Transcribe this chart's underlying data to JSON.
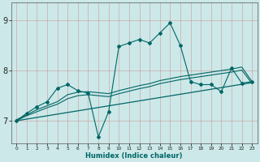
{
  "bg_color": "#cce8e8",
  "line_color": "#006666",
  "x_label": "Humidex (Indice chaleur)",
  "yticks": [
    7,
    8,
    9
  ],
  "xticks": [
    0,
    1,
    2,
    3,
    4,
    5,
    6,
    7,
    8,
    9,
    10,
    11,
    12,
    13,
    14,
    15,
    16,
    17,
    18,
    19,
    20,
    21,
    22,
    23
  ],
  "xlim": [
    -0.5,
    23.5
  ],
  "ylim": [
    6.55,
    9.35
  ],
  "volatile_x": [
    0,
    1,
    2,
    3,
    4,
    5,
    6,
    7,
    8,
    9,
    10,
    11,
    12,
    13,
    14,
    15,
    16,
    17,
    18,
    19,
    20,
    21,
    22,
    23
  ],
  "volatile_y": [
    7.0,
    7.15,
    7.28,
    7.38,
    7.65,
    7.72,
    7.6,
    7.55,
    6.68,
    7.18,
    8.48,
    8.55,
    8.62,
    8.55,
    8.75,
    8.95,
    8.5,
    7.78,
    7.72,
    7.72,
    7.58,
    8.05,
    7.75,
    7.78
  ],
  "smooth1_x": [
    0,
    1,
    2,
    3,
    4,
    5,
    6,
    7,
    8,
    9,
    10,
    11,
    12,
    13,
    14,
    15,
    16,
    17,
    18,
    19,
    20,
    21,
    22,
    23
  ],
  "smooth1_y": [
    7.02,
    7.12,
    7.22,
    7.3,
    7.38,
    7.52,
    7.57,
    7.58,
    7.56,
    7.54,
    7.6,
    7.65,
    7.7,
    7.74,
    7.8,
    7.84,
    7.88,
    7.91,
    7.94,
    7.97,
    8.0,
    8.03,
    8.07,
    7.78
  ],
  "smooth2_x": [
    0,
    1,
    2,
    3,
    4,
    5,
    6,
    7,
    8,
    9,
    10,
    11,
    12,
    13,
    14,
    15,
    16,
    17,
    18,
    19,
    20,
    21,
    22,
    23
  ],
  "smooth2_y": [
    7.0,
    7.1,
    7.18,
    7.26,
    7.33,
    7.44,
    7.5,
    7.52,
    7.5,
    7.48,
    7.54,
    7.59,
    7.64,
    7.68,
    7.74,
    7.78,
    7.82,
    7.85,
    7.88,
    7.91,
    7.94,
    7.97,
    8.01,
    7.74
  ],
  "trend_x": [
    0,
    23
  ],
  "trend_y": [
    7.0,
    7.76
  ]
}
